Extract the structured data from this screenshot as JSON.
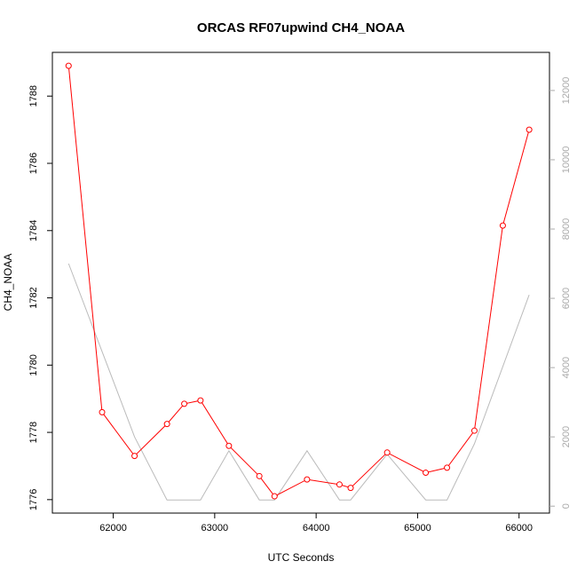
{
  "chart_data": {
    "type": "line",
    "title": "ORCAS RF07upwind CH4_NOAA",
    "xlabel": "UTC Seconds",
    "ylabel": "CH4_NOAA",
    "xlim": [
      61400,
      66300
    ],
    "ylim": [
      1775.6,
      1789.3
    ],
    "ylim_right": [
      -200,
      13100
    ],
    "x_ticks": [
      62000,
      63000,
      64000,
      65000,
      66000
    ],
    "y_ticks": [
      1776,
      1778,
      1780,
      1782,
      1784,
      1786,
      1788
    ],
    "y_ticks_right": [
      0,
      2000,
      4000,
      6000,
      8000,
      10000,
      12000
    ],
    "grid": false,
    "series": [
      {
        "color": "#ff0000",
        "axis": "left",
        "marker": "circle",
        "x": [
          61560,
          61890,
          62210,
          62530,
          62700,
          62860,
          63140,
          63440,
          63590,
          63910,
          64230,
          64340,
          64700,
          65080,
          65290,
          65560,
          65840,
          66100
        ],
        "y": [
          1788.9,
          1778.6,
          1777.3,
          1778.25,
          1778.85,
          1778.95,
          1777.6,
          1776.7,
          1776.1,
          1776.6,
          1776.45,
          1776.35,
          1777.4,
          1776.8,
          1776.95,
          1778.05,
          1784.15,
          1787.0
        ]
      },
      {
        "color": "#bbbbbb",
        "axis": "right",
        "marker": "none",
        "x": [
          61560,
          62210,
          62530,
          62860,
          63140,
          63440,
          63590,
          63910,
          64230,
          64340,
          64700,
          65080,
          65290,
          65560,
          66100
        ],
        "y": [
          7000,
          2000,
          180,
          180,
          1600,
          180,
          180,
          1600,
          180,
          180,
          1500,
          180,
          180,
          1800,
          6100
        ]
      }
    ]
  }
}
